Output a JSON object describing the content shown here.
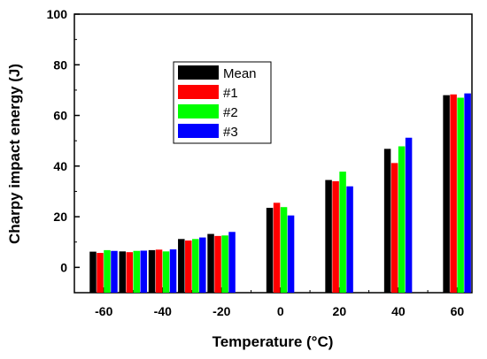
{
  "chart_data": {
    "type": "bar",
    "xlabel": "Temperature (°C)",
    "ylabel": "Charpy impact energy (J)",
    "xlim": [
      -70,
      65
    ],
    "ylim": [
      -10,
      100
    ],
    "x_ticks": [
      -60,
      -40,
      -20,
      0,
      20,
      40,
      60
    ],
    "x_tick_labels": [
      "-60",
      "-40",
      "-20",
      "0",
      "20",
      "40",
      "60"
    ],
    "y_ticks": [
      0,
      20,
      40,
      60,
      80,
      100
    ],
    "y_tick_labels": [
      "0",
      "20",
      "40",
      "60",
      "80",
      "100"
    ],
    "x": [
      -60,
      -50,
      -40,
      -30,
      -20,
      0,
      20,
      40,
      60
    ],
    "series": [
      {
        "name": "Mean",
        "color": "#000000",
        "values": [
          6.2,
          6.3,
          6.8,
          11.2,
          13.2,
          23.5,
          34.5,
          46.8,
          68.0
        ]
      },
      {
        "name": "#1",
        "color": "#ff0000",
        "values": [
          5.7,
          6.0,
          7.0,
          10.6,
          12.4,
          25.5,
          34.0,
          41.2,
          68.3
        ]
      },
      {
        "name": "#2",
        "color": "#00ff00",
        "values": [
          6.8,
          6.5,
          6.3,
          11.2,
          12.6,
          23.8,
          37.8,
          47.8,
          67.0
        ]
      },
      {
        "name": "#3",
        "color": "#0000ff",
        "values": [
          6.5,
          6.6,
          7.1,
          11.8,
          14.0,
          20.5,
          32.0,
          51.2,
          68.7
        ]
      }
    ],
    "legend_position": "upper-left",
    "grid": false
  }
}
